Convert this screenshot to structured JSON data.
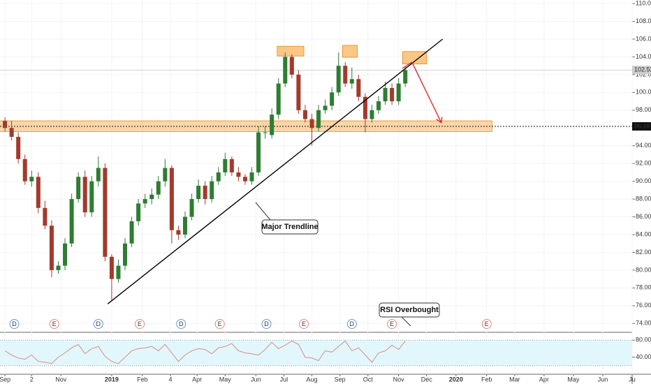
{
  "chart_data": {
    "type": "candlestick",
    "x": [
      0,
      5,
      10,
      15,
      20,
      25,
      30,
      35,
      40,
      45,
      50,
      55,
      60,
      65,
      70,
      75,
      80,
      85,
      90,
      95,
      100,
      105,
      110,
      115,
      120,
      125,
      130,
      135,
      140,
      145,
      150,
      155,
      160,
      165,
      170,
      175,
      180,
      185,
      190,
      195,
      200,
      205,
      210,
      215,
      220,
      225,
      230,
      235,
      240,
      245,
      250,
      255,
      260,
      265,
      270,
      275,
      280,
      285,
      290,
      295,
      300
    ],
    "open": [
      96.8,
      96.0,
      95.0,
      92.5,
      90.0,
      90.5,
      87.0,
      85.0,
      80.0,
      80.5,
      83.0,
      88.0,
      90.5,
      86.5,
      90.0,
      91.5,
      81.5,
      79.0,
      80.5,
      83.0,
      85.5,
      87.5,
      88.0,
      88.5,
      90.0,
      91.5,
      84.5,
      84.0,
      86.0,
      88.0,
      89.5,
      88.0,
      90.0,
      91.0,
      92.5,
      91.0,
      90.5,
      90.0,
      91.0,
      95.5,
      95.2,
      97.5,
      101.0,
      104.0,
      102.0,
      98.0,
      97.0,
      96.0,
      98.0,
      98.5,
      100.0,
      103.0,
      101.0,
      101.5,
      99.5,
      97.0,
      98.0,
      99.0,
      100.5,
      99.0,
      101.0
    ],
    "high": [
      97.2,
      96.8,
      95.5,
      93.0,
      91.2,
      91.0,
      87.8,
      85.6,
      81.0,
      83.6,
      88.6,
      91.0,
      91.2,
      90.6,
      92.8,
      92.0,
      81.8,
      81.2,
      83.6,
      86.0,
      88.0,
      88.6,
      89.2,
      90.6,
      92.5,
      91.8,
      85.0,
      86.6,
      88.6,
      90.2,
      90.0,
      90.6,
      91.6,
      93.2,
      92.8,
      91.6,
      90.8,
      91.6,
      96.2,
      96.2,
      98.2,
      101.6,
      104.5,
      104.3,
      102.5,
      98.6,
      97.6,
      98.6,
      99.2,
      100.6,
      104.5,
      103.4,
      102.8,
      102.0,
      99.9,
      98.6,
      99.6,
      101.2,
      101.0,
      101.6,
      102.9
    ],
    "low": [
      95.6,
      94.6,
      92.0,
      89.6,
      89.4,
      86.4,
      84.6,
      79.2,
      79.6,
      80.0,
      82.6,
      87.6,
      86.0,
      86.0,
      89.4,
      81.0,
      76.6,
      78.6,
      80.0,
      82.6,
      85.0,
      87.0,
      87.4,
      88.0,
      89.4,
      83.0,
      83.4,
      83.6,
      85.6,
      87.6,
      87.4,
      87.6,
      89.6,
      90.6,
      90.6,
      90.0,
      89.6,
      89.6,
      90.6,
      94.8,
      94.8,
      97.0,
      100.6,
      101.6,
      97.6,
      96.6,
      94.0,
      95.6,
      97.6,
      98.0,
      99.6,
      100.6,
      100.4,
      99.0,
      95.5,
      96.6,
      97.6,
      98.6,
      98.6,
      98.6,
      100.6
    ],
    "close": [
      96.0,
      95.0,
      92.5,
      90.0,
      90.5,
      87.0,
      85.0,
      80.0,
      80.5,
      83.0,
      88.0,
      90.5,
      86.5,
      90.0,
      91.5,
      81.5,
      79.0,
      80.5,
      83.0,
      85.5,
      87.5,
      88.0,
      88.5,
      90.0,
      91.5,
      84.5,
      84.0,
      86.0,
      88.0,
      89.5,
      88.0,
      90.0,
      91.0,
      92.5,
      91.0,
      90.5,
      90.0,
      91.0,
      95.5,
      95.5,
      97.5,
      101.0,
      104.0,
      102.0,
      98.0,
      97.0,
      96.0,
      98.0,
      98.5,
      100.0,
      103.0,
      101.0,
      101.5,
      99.5,
      97.0,
      98.0,
      99.0,
      100.5,
      99.0,
      101.0,
      102.5
    ],
    "up_color": "#2e7d32",
    "down_color": "#a33a2c",
    "xlim": [
      -3.7,
      470
    ],
    "xticks": [
      {
        "value": 0,
        "label": "Sep"
      },
      {
        "value": 20,
        "label": "2"
      },
      {
        "value": 42,
        "label": "Nov"
      },
      {
        "value": 80,
        "label": "2019"
      },
      {
        "value": 103,
        "label": "Feb"
      },
      {
        "value": 124,
        "label": "4"
      },
      {
        "value": 144,
        "label": "Apr"
      },
      {
        "value": 165,
        "label": "May"
      },
      {
        "value": 188,
        "label": "Jun"
      },
      {
        "value": 209,
        "label": "Jul"
      },
      {
        "value": 230,
        "label": "Aug"
      },
      {
        "value": 251,
        "label": "Sep"
      },
      {
        "value": 272,
        "label": "Oct"
      },
      {
        "value": 295,
        "label": "Nov"
      },
      {
        "value": 316,
        "label": "Dec"
      },
      {
        "value": 338,
        "label": "2020"
      },
      {
        "value": 361,
        "label": "Feb"
      },
      {
        "value": 382,
        "label": "Mar"
      },
      {
        "value": 404,
        "label": "Apr"
      },
      {
        "value": 426,
        "label": "May"
      },
      {
        "value": 448,
        "label": "Jun"
      },
      {
        "value": 470,
        "label": "Ju"
      }
    ],
    "ylim": [
      73,
      110.4
    ],
    "yticks": [
      {
        "value": 74,
        "label": "74.00"
      },
      {
        "value": 76,
        "label": "76.00"
      },
      {
        "value": 78,
        "label": "78.00"
      },
      {
        "value": 80,
        "label": "80.00"
      },
      {
        "value": 82,
        "label": "82.00"
      },
      {
        "value": 84,
        "label": "84.00"
      },
      {
        "value": 86,
        "label": "86.00"
      },
      {
        "value": 88,
        "label": "88.00"
      },
      {
        "value": 90,
        "label": "90.00"
      },
      {
        "value": 92,
        "label": "92.00"
      },
      {
        "value": 94,
        "label": "94.00"
      },
      {
        "value": 96,
        "label": "96.00"
      },
      {
        "value": 98,
        "label": "98.00"
      },
      {
        "value": 100,
        "label": "100.00"
      },
      {
        "value": 102,
        "label": "102.00"
      },
      {
        "value": 104,
        "label": "104.00"
      },
      {
        "value": 106,
        "label": "106.00"
      },
      {
        "value": 108,
        "label": "108.00"
      },
      {
        "value": 110,
        "label": "110.00"
      }
    ],
    "last_price": 102.52,
    "support_level": 96.18,
    "zone": {
      "x": [
        -4,
        365
      ],
      "y": [
        95.6,
        96.8
      ],
      "color": "#f9b460"
    },
    "boxes": [
      {
        "x": [
          204,
          224
        ],
        "y": [
          104.1,
          105.2
        ]
      },
      {
        "x": [
          253,
          264
        ],
        "y": [
          103.95,
          105.3
        ]
      },
      {
        "x": [
          298,
          316
        ],
        "y": [
          103.2,
          104.6
        ]
      }
    ],
    "trendline": {
      "x": [
        77,
        328
      ],
      "y": [
        76.2,
        106
      ]
    },
    "projection": {
      "x": [
        305,
        327
      ],
      "y": [
        103.4,
        96.6
      ],
      "color": "#d32f2f"
    },
    "annotations": [
      {
        "text": "Major Trendline"
      },
      {
        "text": "RSI Overbought"
      }
    ],
    "events": [
      {
        "label": "D",
        "x": 7
      },
      {
        "label": "E",
        "x": 37
      },
      {
        "label": "D",
        "x": 70
      },
      {
        "label": "E",
        "x": 101
      },
      {
        "label": "D",
        "x": 132
      },
      {
        "label": "E",
        "x": 161
      },
      {
        "label": "D",
        "x": 196
      },
      {
        "label": "E",
        "x": 224
      },
      {
        "label": "D",
        "x": 260
      },
      {
        "label": "E",
        "x": 290
      },
      {
        "label": "E",
        "x": 361
      }
    ],
    "dividend_color": "#3d7ed6",
    "earnings_color": "#e0695a",
    "rsi": {
      "values": [
        55,
        45,
        38,
        35,
        45,
        30,
        28,
        25,
        40,
        50,
        62,
        70,
        48,
        60,
        65,
        42,
        30,
        25,
        40,
        55,
        60,
        62,
        65,
        55,
        70,
        50,
        30,
        45,
        55,
        60,
        58,
        48,
        62,
        65,
        72,
        55,
        50,
        48,
        45,
        58,
        75,
        60,
        68,
        78,
        70,
        40,
        38,
        32,
        55,
        52,
        65,
        78,
        55,
        62,
        45,
        28,
        50,
        55,
        68,
        58,
        78
      ],
      "color": "#d98a8a",
      "ylim": [
        0,
        96.7
      ],
      "yticks": [
        {
          "value": 80,
          "label": "80.00"
        },
        {
          "value": 40,
          "label": "40.00"
        }
      ],
      "band": [
        20,
        80
      ],
      "band_color": "#e2f7fb"
    }
  }
}
